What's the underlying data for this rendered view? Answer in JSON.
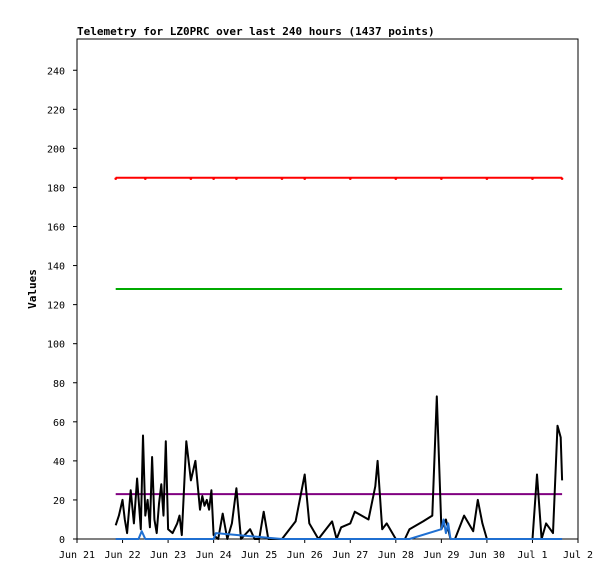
{
  "chart_data": {
    "type": "line",
    "title": "Telemetry for LZ0PRC over last 240 hours (1437 points)",
    "xlabel": "",
    "ylabel": "Values",
    "xlim": [
      0,
      11
    ],
    "ylim": [
      0,
      256
    ],
    "x_tick_values": [
      0,
      1,
      2,
      3,
      4,
      5,
      6,
      7,
      8,
      9,
      10,
      11
    ],
    "x_tick_labels": [
      "Jun 21",
      "Jun 22",
      "Jun 23",
      "Jun 24",
      "Jun 25",
      "Jun 26",
      "Jun 27",
      "Jun 28",
      "Jun 29",
      "Jun 30",
      "Jul 1",
      "Jul 2"
    ],
    "y_tick_values": [
      0,
      20,
      40,
      60,
      80,
      100,
      120,
      140,
      160,
      180,
      200,
      220,
      240
    ],
    "grid": false,
    "legend": "none",
    "series": [
      {
        "color": "#ff0000",
        "x": [
          0.85,
          1.5,
          2.5,
          3.0,
          3.5,
          4.5,
          5.0,
          6.0,
          7.0,
          8.0,
          9.0,
          10.0,
          10.65
        ],
        "y": [
          185,
          185,
          185,
          185,
          185,
          185,
          185,
          185,
          185,
          185,
          185,
          185,
          185
        ]
      },
      {
        "color": "#00aa00",
        "x": [
          0.85,
          10.65
        ],
        "y": [
          128,
          128
        ]
      },
      {
        "color": "#800080",
        "x": [
          0.85,
          10.65
        ],
        "y": [
          23,
          23
        ]
      },
      {
        "color": "#000000",
        "x": [
          0.85,
          0.92,
          1.0,
          1.05,
          1.1,
          1.18,
          1.25,
          1.32,
          1.4,
          1.45,
          1.5,
          1.55,
          1.6,
          1.65,
          1.7,
          1.75,
          1.8,
          1.85,
          1.9,
          1.95,
          2.0,
          2.1,
          2.2,
          2.25,
          2.3,
          2.4,
          2.5,
          2.6,
          2.7,
          2.75,
          2.8,
          2.85,
          2.9,
          2.95,
          3.0,
          3.1,
          3.2,
          3.3,
          3.4,
          3.5,
          3.6,
          3.8,
          3.9,
          4.0,
          4.1,
          4.2,
          4.3,
          4.5,
          4.8,
          5.0,
          5.1,
          5.3,
          5.6,
          5.7,
          5.8,
          6.0,
          6.1,
          6.4,
          6.55,
          6.6,
          6.7,
          6.8,
          7.0,
          7.2,
          7.3,
          7.6,
          7.8,
          7.9,
          8.0,
          8.1,
          8.2,
          8.3,
          8.5,
          8.7,
          8.8,
          8.9,
          9.0,
          9.2,
          9.3,
          9.6,
          9.8,
          10.0,
          10.1,
          10.2,
          10.3,
          10.45,
          10.55,
          10.62,
          10.65
        ],
        "y": [
          7,
          12,
          20,
          10,
          3,
          25,
          8,
          31,
          5,
          53,
          12,
          20,
          6,
          42,
          10,
          3,
          18,
          28,
          12,
          50,
          5,
          3,
          8,
          12,
          2,
          50,
          30,
          40,
          15,
          22,
          17,
          20,
          15,
          25,
          2,
          0,
          13,
          0,
          8,
          26,
          0,
          5,
          0,
          0,
          14,
          0,
          0,
          0,
          9,
          33,
          8,
          0,
          9,
          0,
          6,
          8,
          14,
          10,
          27,
          40,
          5,
          8,
          0,
          0,
          5,
          9,
          12,
          73,
          5,
          10,
          0,
          0,
          12,
          4,
          20,
          8,
          0,
          0,
          0,
          0,
          0,
          0,
          33,
          0,
          8,
          3,
          58,
          52,
          30
        ]
      },
      {
        "color": "#1f6fd1",
        "x": [
          0.85,
          1.35,
          1.42,
          1.5,
          3.0,
          3.05,
          4.5,
          7.3,
          8.0,
          8.05,
          8.1,
          8.15,
          8.2,
          10.65
        ],
        "y": [
          0,
          0,
          4,
          0,
          0,
          3,
          0,
          0,
          5,
          10,
          3,
          8,
          0,
          0
        ]
      }
    ]
  }
}
